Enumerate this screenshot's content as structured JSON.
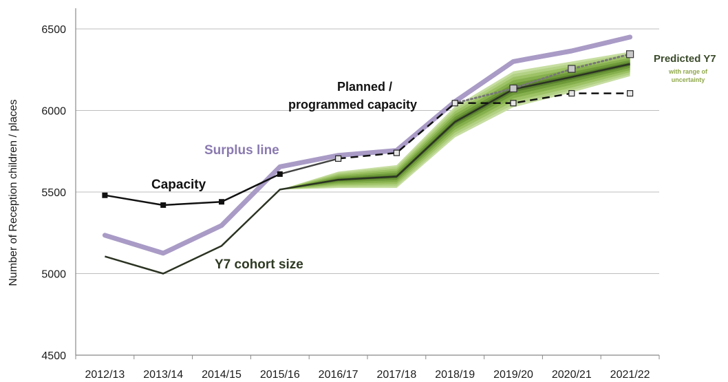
{
  "chart_data": {
    "type": "line",
    "title": "",
    "xlabel": "",
    "ylabel": "Number of Reception children / places",
    "ylim": [
      4500,
      6500
    ],
    "yticks": [
      4500,
      5000,
      5500,
      6000,
      6500
    ],
    "grid": true,
    "categories": [
      "2012/13",
      "2013/14",
      "2014/15",
      "2015/16",
      "2016/17",
      "2017/18",
      "2018/19",
      "2019/20",
      "2020/21",
      "2021/22"
    ],
    "series": [
      {
        "name": "Surplus line",
        "color": "#a99bc6",
        "values": [
          5235,
          5125,
          5295,
          5655,
          5725,
          5755,
          6055,
          6300,
          6365,
          6450
        ]
      },
      {
        "name": "Capacity",
        "color": "#111111",
        "values": [
          5480,
          5420,
          5440,
          5610,
          null,
          null,
          null,
          null,
          null,
          null
        ]
      },
      {
        "name": "Planned / programmed capacity",
        "color": "#111111",
        "values": [
          null,
          null,
          null,
          5610,
          5705,
          5740,
          6045,
          6045,
          6105,
          6105
        ]
      },
      {
        "name": "Y7 cohort size",
        "color": "#2b3322",
        "values": [
          5105,
          5000,
          5170,
          5515,
          5575,
          5595,
          5930,
          6130,
          6205,
          6285
        ]
      },
      {
        "name": "Predicted Y7",
        "color": "#777777",
        "values": [
          null,
          null,
          null,
          null,
          null,
          null,
          6045,
          6135,
          6255,
          6345
        ]
      }
    ],
    "uncertainty": {
      "name": "with range of uncertainty",
      "x_start": "2015/16",
      "center": [
        5515,
        5575,
        5595,
        5930,
        6130,
        6205,
        6285
      ],
      "half_widths": [
        0,
        50,
        70,
        95,
        110,
        95,
        75
      ]
    },
    "annotations": [
      {
        "text": "Surplus line",
        "color": "#8a7ab0"
      },
      {
        "text": "Capacity",
        "color": "#111111"
      },
      {
        "text": "Planned /",
        "color": "#111111"
      },
      {
        "text": "programmed capacity",
        "color": "#111111"
      },
      {
        "text": "Y7 cohort size",
        "color": "#2f3a24"
      },
      {
        "text": "Predicted Y7",
        "color": "#3a4a2a"
      },
      {
        "text": "with range of",
        "color": "#8fa84a"
      },
      {
        "text": "uncertainty",
        "color": "#8fa84a"
      }
    ]
  }
}
